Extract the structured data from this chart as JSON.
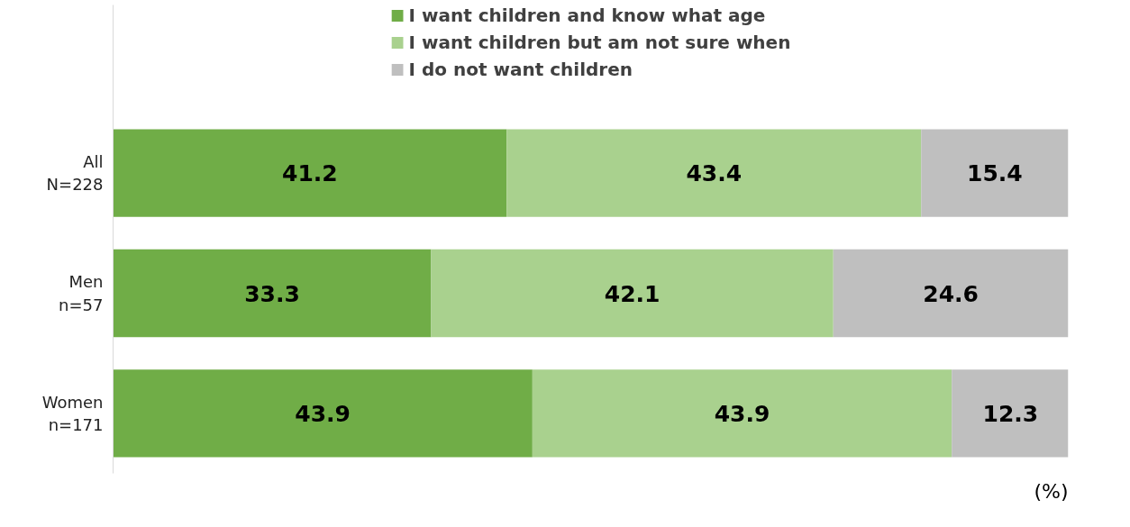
{
  "chart_data": {
    "type": "bar",
    "orientation": "horizontal",
    "stacked": true,
    "data_labels": true,
    "legend": "top",
    "grid": false,
    "tick_labels": "y",
    "categories": [
      "All\nN=228",
      "Men\nn=57",
      "Women\nn=171"
    ],
    "xlim": [
      0,
      100
    ],
    "series": [
      {
        "name": "I want children and know what age",
        "color": "#70ad47",
        "values": [
          41.2,
          33.3,
          43.9
        ]
      },
      {
        "name": "I want children but am not sure when",
        "color": "#a9d18e",
        "values": [
          43.4,
          42.1,
          43.9
        ]
      },
      {
        "name": "I do not want children",
        "color": "#bfbfbf",
        "values": [
          15.4,
          24.6,
          12.3
        ]
      }
    ],
    "annotations": [
      "(%)"
    ]
  }
}
